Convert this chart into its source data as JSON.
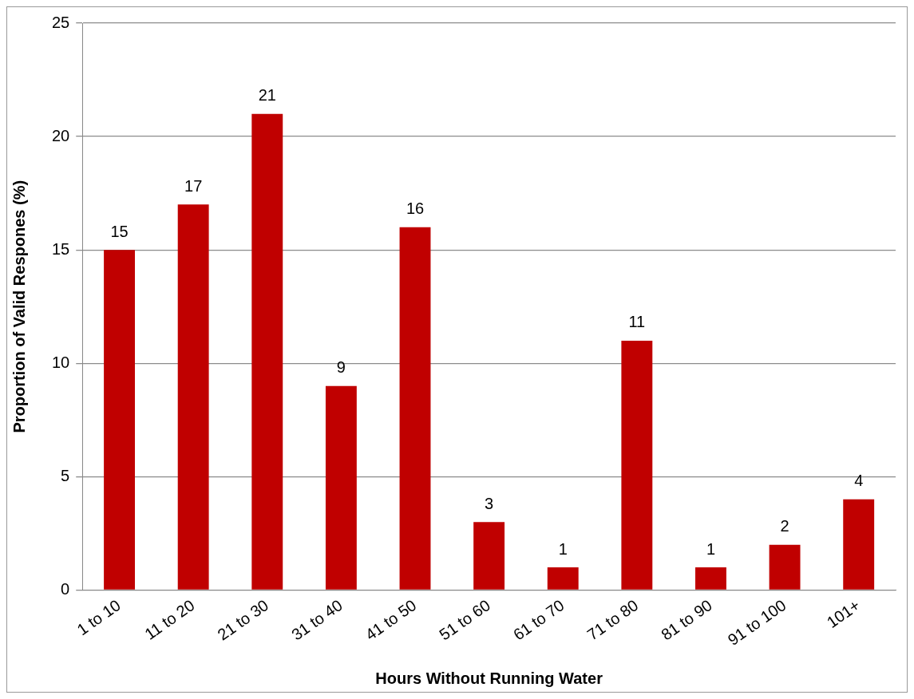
{
  "chart_data": {
    "type": "bar",
    "xlabel": "Hours Without Running Water",
    "ylabel": "Proportion of Valid Respones (%)",
    "categories": [
      "1 to 10",
      "11 to 20",
      "21 to 30",
      "31 to 40",
      "41 to 50",
      "51 to 60",
      "61 to 70",
      "71 to 80",
      "81 to 90",
      "91 to 100",
      "101+"
    ],
    "values": [
      15,
      17,
      21,
      9,
      16,
      3,
      1,
      11,
      1,
      2,
      4
    ],
    "color": "#c00000",
    "ylim": [
      0,
      25
    ],
    "yticks": [
      0,
      5,
      10,
      15,
      20,
      25
    ],
    "grid": "y",
    "data_labels": true,
    "legend": false
  }
}
